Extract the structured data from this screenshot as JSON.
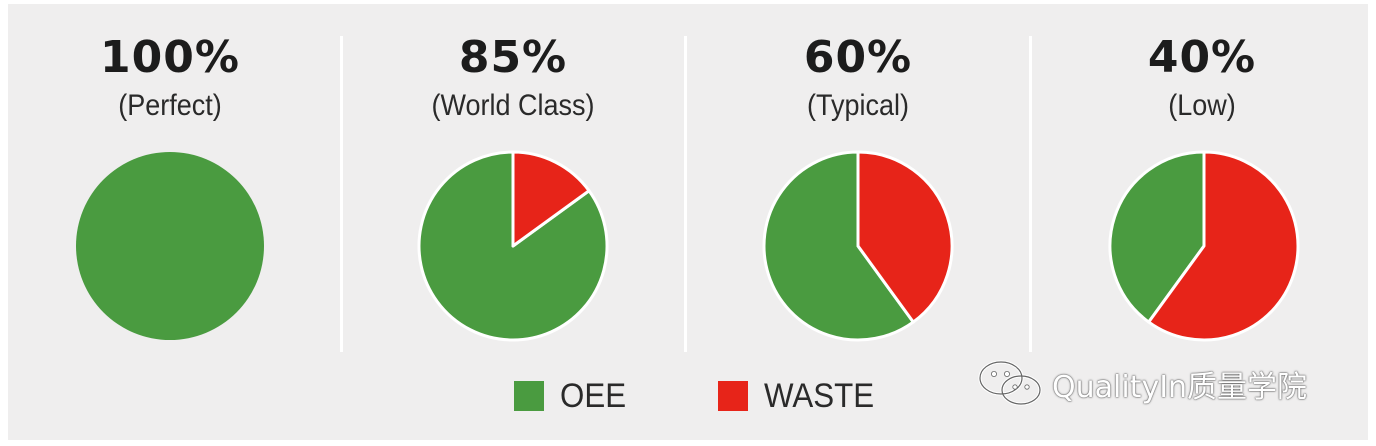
{
  "chart_data": {
    "type": "pie",
    "colors": {
      "oee": "#4a9b40",
      "waste": "#e72419"
    },
    "pies": [
      {
        "title": "100%",
        "subtitle": "(Perfect)",
        "oee": 100,
        "waste": 0
      },
      {
        "title": "85%",
        "subtitle": "(World Class)",
        "oee": 85,
        "waste": 15
      },
      {
        "title": "60%",
        "subtitle": "(Typical)",
        "oee": 60,
        "waste": 40
      },
      {
        "title": "40%",
        "subtitle": "(Low)",
        "oee": 40,
        "waste": 60
      }
    ],
    "legend": [
      {
        "label": "OEE",
        "color": "#4a9b40"
      },
      {
        "label": "WASTE",
        "color": "#e72419"
      }
    ],
    "legend_position": "bottom"
  },
  "watermark": {
    "text": "QualityIn质量学院",
    "icon": "wechat-icon"
  }
}
